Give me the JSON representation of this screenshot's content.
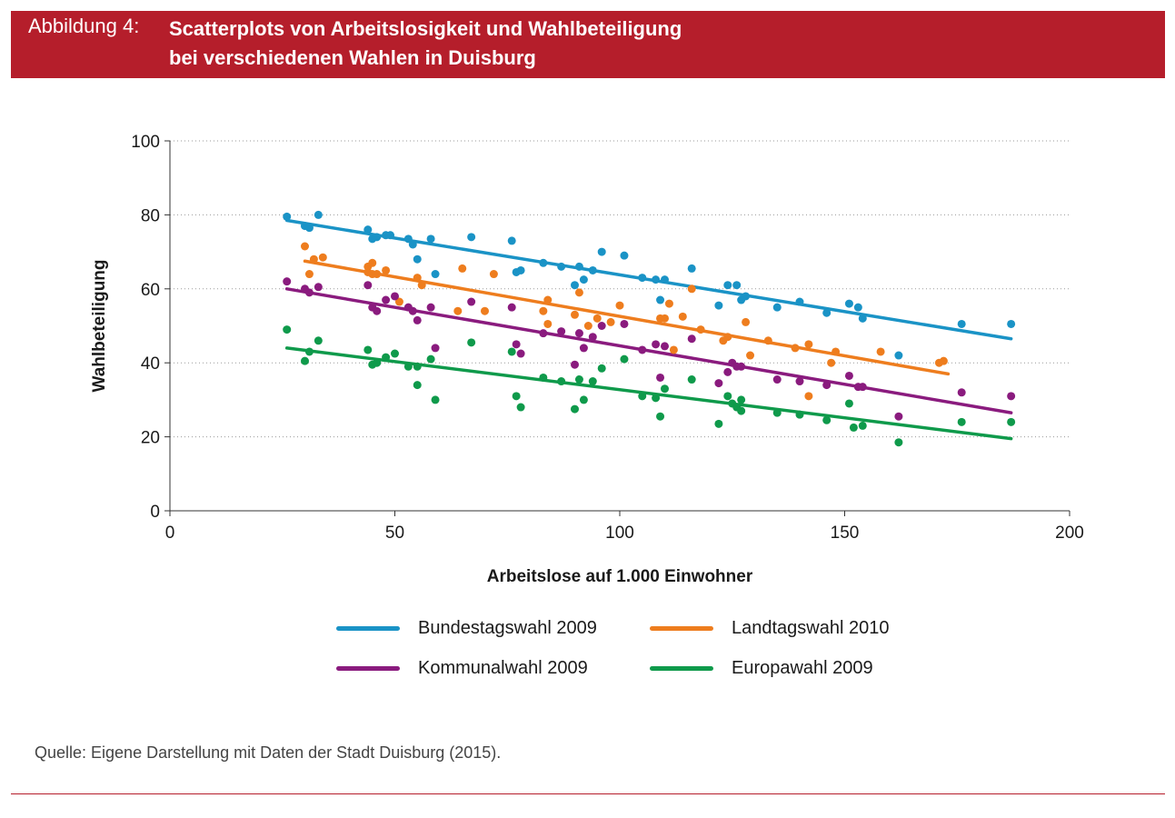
{
  "header": {
    "figure_label": "Abbildung 4:",
    "title_line1": "Scatterplots von Arbeitslosigkeit und Wahlbeteiligung",
    "title_line2": "bei verschiedenen Wahlen in Duisburg",
    "banner_color": "#b51e2b"
  },
  "source": "Quelle: Eigene Darstellung mit Daten der Stadt Duisburg (2015).",
  "chart_data": {
    "type": "scatter",
    "xlabel": "Arbeitslose auf 1.000 Einwohner",
    "ylabel": "Wahlbeteiligung",
    "xlim": [
      0,
      200
    ],
    "ylim": [
      0,
      100
    ],
    "xticks": [
      0,
      50,
      100,
      150,
      200
    ],
    "yticks": [
      0,
      20,
      40,
      60,
      80,
      100
    ],
    "grid": "horizontal dotted",
    "legend_position": "bottom",
    "series": [
      {
        "name": "Bundestagswahl 2009",
        "color": "#1a93c6",
        "trend": [
          [
            26,
            78.5
          ],
          [
            187,
            46.5
          ]
        ],
        "points": [
          [
            26,
            79.5
          ],
          [
            30,
            77
          ],
          [
            31,
            76.5
          ],
          [
            33,
            80
          ],
          [
            44,
            76
          ],
          [
            45,
            73.5
          ],
          [
            46,
            74
          ],
          [
            48,
            74.5
          ],
          [
            49,
            74.5
          ],
          [
            53,
            73.5
          ],
          [
            54,
            72
          ],
          [
            55,
            68
          ],
          [
            58,
            73.5
          ],
          [
            59,
            64
          ],
          [
            67,
            74
          ],
          [
            76,
            73
          ],
          [
            77,
            64.5
          ],
          [
            78,
            65
          ],
          [
            83,
            67
          ],
          [
            87,
            66
          ],
          [
            90,
            61
          ],
          [
            91,
            66
          ],
          [
            92,
            62.5
          ],
          [
            94,
            65
          ],
          [
            96,
            70
          ],
          [
            101,
            69
          ],
          [
            105,
            63
          ],
          [
            108,
            62.5
          ],
          [
            109,
            57
          ],
          [
            110,
            62.5
          ],
          [
            116,
            65.5
          ],
          [
            122,
            55.5
          ],
          [
            124,
            61
          ],
          [
            126,
            61
          ],
          [
            127,
            57
          ],
          [
            128,
            58
          ],
          [
            135,
            55
          ],
          [
            140,
            56.5
          ],
          [
            146,
            53.5
          ],
          [
            151,
            56
          ],
          [
            153,
            55
          ],
          [
            154,
            52
          ],
          [
            162,
            42
          ],
          [
            176,
            50.5
          ],
          [
            187,
            50.5
          ]
        ]
      },
      {
        "name": "Landtagswahl 2010",
        "color": "#ee7d1e",
        "trend": [
          [
            30,
            67.5
          ],
          [
            173,
            37
          ]
        ],
        "points": [
          [
            30,
            71.5
          ],
          [
            31,
            64
          ],
          [
            32,
            68
          ],
          [
            34,
            68.5
          ],
          [
            44,
            64.5
          ],
          [
            44,
            66
          ],
          [
            45,
            67
          ],
          [
            45,
            64
          ],
          [
            46,
            64
          ],
          [
            48,
            65
          ],
          [
            51,
            56.5
          ],
          [
            55,
            63
          ],
          [
            56,
            61
          ],
          [
            64,
            54
          ],
          [
            65,
            65.5
          ],
          [
            70,
            54
          ],
          [
            72,
            64
          ],
          [
            83,
            54
          ],
          [
            84,
            57
          ],
          [
            84,
            50.5
          ],
          [
            90,
            53
          ],
          [
            91,
            59
          ],
          [
            93,
            50
          ],
          [
            95,
            52
          ],
          [
            98,
            51
          ],
          [
            100,
            55.5
          ],
          [
            109,
            52
          ],
          [
            110,
            52
          ],
          [
            111,
            56
          ],
          [
            112,
            43.5
          ],
          [
            114,
            52.5
          ],
          [
            116,
            60
          ],
          [
            118,
            49
          ],
          [
            123,
            46
          ],
          [
            124,
            47
          ],
          [
            128,
            51
          ],
          [
            129,
            42
          ],
          [
            133,
            46
          ],
          [
            139,
            44
          ],
          [
            142,
            45
          ],
          [
            142,
            31
          ],
          [
            147,
            40
          ],
          [
            148,
            43
          ],
          [
            158,
            43
          ],
          [
            171,
            40
          ],
          [
            172,
            40.5
          ]
        ]
      },
      {
        "name": "Kommunalwahl 2009",
        "color": "#8a1b7e",
        "trend": [
          [
            26,
            60
          ],
          [
            187,
            26.5
          ]
        ],
        "points": [
          [
            26,
            62
          ],
          [
            30,
            60
          ],
          [
            31,
            59
          ],
          [
            33,
            60.5
          ],
          [
            44,
            61
          ],
          [
            45,
            55
          ],
          [
            46,
            54
          ],
          [
            48,
            57
          ],
          [
            50,
            58
          ],
          [
            53,
            55
          ],
          [
            54,
            54
          ],
          [
            55,
            51.5
          ],
          [
            58,
            55
          ],
          [
            59,
            44
          ],
          [
            67,
            56.5
          ],
          [
            76,
            55
          ],
          [
            77,
            45
          ],
          [
            78,
            42.5
          ],
          [
            83,
            48
          ],
          [
            87,
            48.5
          ],
          [
            90,
            39.5
          ],
          [
            91,
            48
          ],
          [
            92,
            44
          ],
          [
            94,
            47
          ],
          [
            96,
            50
          ],
          [
            101,
            50.5
          ],
          [
            105,
            43.5
          ],
          [
            108,
            45
          ],
          [
            109,
            36
          ],
          [
            110,
            44.5
          ],
          [
            116,
            46.5
          ],
          [
            122,
            34.5
          ],
          [
            124,
            37.5
          ],
          [
            125,
            40
          ],
          [
            126,
            39
          ],
          [
            127,
            39
          ],
          [
            135,
            35.5
          ],
          [
            140,
            35
          ],
          [
            146,
            34
          ],
          [
            151,
            36.5
          ],
          [
            153,
            33.5
          ],
          [
            154,
            33.5
          ],
          [
            162,
            25.5
          ],
          [
            176,
            32
          ],
          [
            187,
            31
          ]
        ]
      },
      {
        "name": "Europawahl 2009",
        "color": "#0f9a4b",
        "trend": [
          [
            26,
            44
          ],
          [
            187,
            19.5
          ]
        ],
        "points": [
          [
            26,
            49
          ],
          [
            30,
            40.5
          ],
          [
            31,
            43
          ],
          [
            33,
            46
          ],
          [
            44,
            43.5
          ],
          [
            45,
            39.5
          ],
          [
            46,
            40
          ],
          [
            48,
            41.5
          ],
          [
            50,
            42.5
          ],
          [
            53,
            39
          ],
          [
            55,
            39
          ],
          [
            55,
            34
          ],
          [
            58,
            41
          ],
          [
            59,
            30
          ],
          [
            67,
            45.5
          ],
          [
            76,
            43
          ],
          [
            77,
            31
          ],
          [
            78,
            28
          ],
          [
            83,
            36
          ],
          [
            87,
            35
          ],
          [
            90,
            27.5
          ],
          [
            91,
            35.5
          ],
          [
            92,
            30
          ],
          [
            94,
            35
          ],
          [
            96,
            38.5
          ],
          [
            101,
            41
          ],
          [
            105,
            31
          ],
          [
            108,
            30.5
          ],
          [
            109,
            25.5
          ],
          [
            110,
            33
          ],
          [
            116,
            35.5
          ],
          [
            122,
            23.5
          ],
          [
            124,
            31
          ],
          [
            125,
            29
          ],
          [
            126,
            28
          ],
          [
            127,
            30
          ],
          [
            127,
            27
          ],
          [
            135,
            26.5
          ],
          [
            140,
            26
          ],
          [
            146,
            24.5
          ],
          [
            151,
            29
          ],
          [
            152,
            22.5
          ],
          [
            154,
            23
          ],
          [
            162,
            18.5
          ],
          [
            176,
            24
          ],
          [
            187,
            24
          ]
        ]
      }
    ]
  }
}
